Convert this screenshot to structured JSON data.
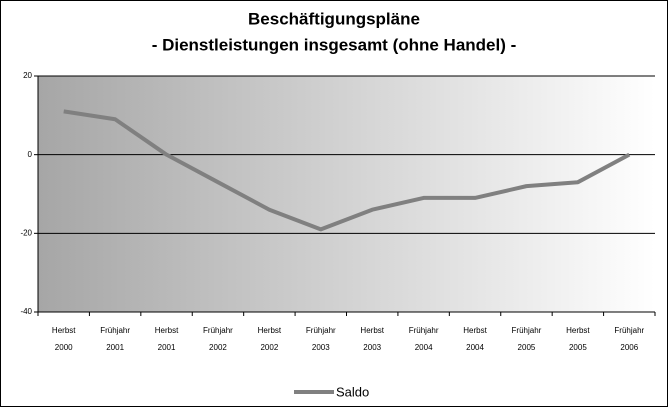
{
  "chart_data": {
    "type": "line",
    "title": [
      "Beschäftigungspläne",
      "- Dienstleistungen insgesamt (ohne Handel) -"
    ],
    "categories": [
      [
        "Herbst",
        "2000"
      ],
      [
        "Frühjahr",
        "2001"
      ],
      [
        "Herbst",
        "2001"
      ],
      [
        "Frühjahr",
        "2002"
      ],
      [
        "Herbst",
        "2002"
      ],
      [
        "Frühjahr",
        "2003"
      ],
      [
        "Herbst",
        "2003"
      ],
      [
        "Frühjahr",
        "2004"
      ],
      [
        "Herbst",
        "2004"
      ],
      [
        "Frühjahr",
        "2005"
      ],
      [
        "Herbst",
        "2005"
      ],
      [
        "Frühjahr",
        "2006"
      ]
    ],
    "series": [
      {
        "name": "Saldo",
        "color": "#808080",
        "values": [
          11,
          9,
          0,
          -7,
          -14,
          -19,
          -14,
          -11,
          -11,
          -8,
          -7,
          0
        ]
      }
    ],
    "ylim": [
      -40,
      20
    ],
    "yticks": [
      -40,
      -20,
      0,
      20
    ],
    "grid": true,
    "legend": "bottom"
  }
}
